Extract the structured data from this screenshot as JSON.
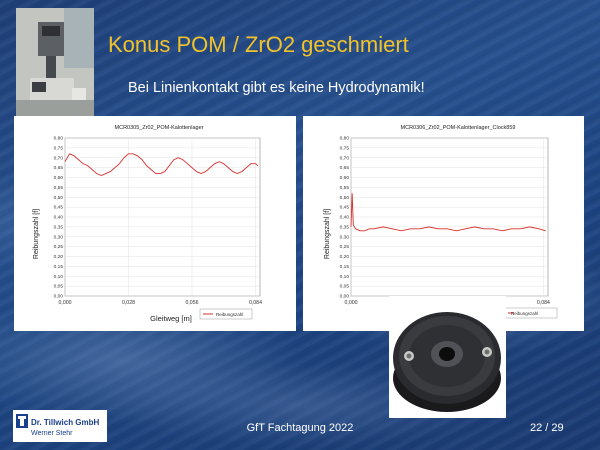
{
  "slide": {
    "title": "Konus POM / ZrO2 geschmiert",
    "subtitle": "Bei Linienkontakt gibt es keine Hydrodynamik!",
    "footer": "GfT Fachtagung 2022",
    "page": "22 / 29"
  },
  "logo": {
    "line1": "Dr. Tillwich GmbH",
    "line2": "Werner Stehr"
  },
  "chart_data": [
    {
      "type": "line",
      "title": "MCR0305_Zr02_POM-Kalottenlager",
      "xlabel": "Gleitweg [m]",
      "ylabel": "Reibungszahl [f]",
      "ylim": [
        0,
        0.8
      ],
      "yticks": [
        "0,00",
        "0,05",
        "0,10",
        "0,15",
        "0,20",
        "0,25",
        "0,30",
        "0,35",
        "0,40",
        "0,45",
        "0,50",
        "0,55",
        "0,60",
        "0,65",
        "0,70",
        "0,75",
        "0,80"
      ],
      "xticks": [
        "0,000",
        "0,028",
        "0,056",
        "0,084"
      ],
      "xlim": [
        0,
        0.086
      ],
      "legend": "Reibungszahl",
      "color": "#d9302c",
      "series": [
        {
          "name": "Reibungszahl",
          "x": [
            0.0,
            0.002,
            0.004,
            0.006,
            0.008,
            0.01,
            0.012,
            0.014,
            0.016,
            0.018,
            0.02,
            0.022,
            0.024,
            0.026,
            0.028,
            0.03,
            0.032,
            0.034,
            0.036,
            0.038,
            0.04,
            0.042,
            0.044,
            0.046,
            0.048,
            0.05,
            0.052,
            0.054,
            0.056,
            0.058,
            0.06,
            0.062,
            0.064,
            0.066,
            0.068,
            0.07,
            0.072,
            0.074,
            0.076,
            0.078,
            0.08,
            0.082,
            0.084,
            0.085
          ],
          "y": [
            0.68,
            0.72,
            0.71,
            0.69,
            0.67,
            0.66,
            0.64,
            0.62,
            0.61,
            0.62,
            0.63,
            0.65,
            0.67,
            0.7,
            0.72,
            0.72,
            0.71,
            0.69,
            0.66,
            0.64,
            0.62,
            0.62,
            0.63,
            0.66,
            0.69,
            0.7,
            0.69,
            0.67,
            0.65,
            0.63,
            0.62,
            0.63,
            0.65,
            0.67,
            0.68,
            0.67,
            0.65,
            0.63,
            0.62,
            0.63,
            0.65,
            0.67,
            0.67,
            0.66
          ]
        }
      ]
    },
    {
      "type": "line",
      "title": "MCR0306_Zr02_POM-Kalottenlager_Clock859",
      "xlabel": "",
      "ylabel": "Reibungszahl [f]",
      "ylim": [
        0,
        0.8
      ],
      "yticks": [
        "0,00",
        "0,05",
        "0,10",
        "0,15",
        "0,20",
        "0,25",
        "0,30",
        "0,35",
        "0,40",
        "0,45",
        "0,50",
        "0,55",
        "0,60",
        "0,65",
        "0,70",
        "0,75",
        "0,80"
      ],
      "xticks": [
        "0,000",
        "0,084"
      ],
      "xlim": [
        0,
        0.086
      ],
      "legend": "Reibungszahl",
      "color": "#d9302c",
      "series": [
        {
          "name": "Reibungszahl",
          "x": [
            0.0,
            0.0005,
            0.001,
            0.002,
            0.004,
            0.006,
            0.008,
            0.01,
            0.014,
            0.018,
            0.022,
            0.026,
            0.03,
            0.034,
            0.038,
            0.042,
            0.046,
            0.05,
            0.054,
            0.058,
            0.062,
            0.066,
            0.07,
            0.074,
            0.078,
            0.082,
            0.085
          ],
          "y": [
            0.35,
            0.52,
            0.36,
            0.34,
            0.33,
            0.33,
            0.34,
            0.34,
            0.35,
            0.34,
            0.33,
            0.34,
            0.34,
            0.35,
            0.34,
            0.34,
            0.33,
            0.34,
            0.35,
            0.34,
            0.34,
            0.33,
            0.34,
            0.34,
            0.35,
            0.34,
            0.33
          ]
        }
      ]
    }
  ],
  "colors": {
    "title": "#f2c229",
    "line": "#d9302c",
    "logo_blue": "#1a3f8c"
  },
  "icons": [
    "test-rig-photo",
    "cone-disk-photo",
    "company-logo"
  ]
}
